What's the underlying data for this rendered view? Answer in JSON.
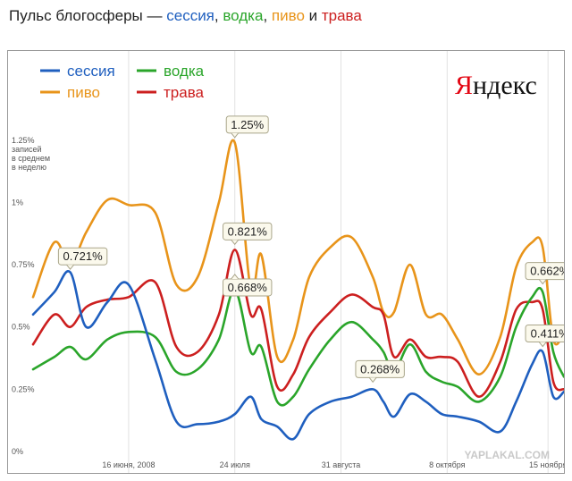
{
  "page": {
    "title_prefix": "Пульс блогосферы — ",
    "title_terms": [
      {
        "text": "сессия",
        "color": "#1f5fbf"
      },
      {
        "text": ", ",
        "color": "#222222"
      },
      {
        "text": "водка",
        "color": "#2aa52a"
      },
      {
        "text": ", ",
        "color": "#222222"
      },
      {
        "text": "пиво",
        "color": "#e8941a"
      },
      {
        "text": " и ",
        "color": "#222222"
      },
      {
        "text": "трава",
        "color": "#cc1f1f"
      }
    ]
  },
  "brand": {
    "text": "Яндекс",
    "accent_letter": "Я",
    "accent_color": "#e30613"
  },
  "watermark": "YAPLAKAL.COM",
  "chart_data": {
    "type": "line",
    "ylabel": "записей в среднем в неделю",
    "y_ticks": [
      "1.25%",
      "1%",
      "0.75%",
      "0.5%",
      "0.25%",
      "0%"
    ],
    "y_tick_values": [
      1.25,
      1.0,
      0.75,
      0.5,
      0.25,
      0
    ],
    "ylim": [
      0,
      1.35
    ],
    "xlim": [
      0,
      100
    ],
    "x_ticks": [
      {
        "label": "16 июня, 2008",
        "x": 18
      },
      {
        "label": "24 июля",
        "x": 38
      },
      {
        "label": "31 августа",
        "x": 58
      },
      {
        "label": "8 октября",
        "x": 78
      },
      {
        "label": "15 ноября",
        "x": 97
      }
    ],
    "grid": true,
    "legend": "top-left",
    "series": [
      {
        "name": "сессия",
        "color": "#1f5fbf",
        "x": [
          0,
          4,
          7,
          10,
          14,
          18,
          23,
          27,
          31,
          35,
          38,
          41,
          43,
          46,
          49,
          52,
          56,
          60,
          64,
          66,
          68,
          71,
          74,
          77,
          80,
          84,
          88,
          91,
          94,
          96,
          98,
          100
        ],
        "values": [
          0.55,
          0.64,
          0.72,
          0.5,
          0.6,
          0.67,
          0.37,
          0.12,
          0.11,
          0.12,
          0.15,
          0.22,
          0.13,
          0.1,
          0.05,
          0.15,
          0.2,
          0.22,
          0.25,
          0.2,
          0.14,
          0.23,
          0.2,
          0.15,
          0.14,
          0.12,
          0.08,
          0.2,
          0.35,
          0.4,
          0.22,
          0.24
        ]
      },
      {
        "name": "водка",
        "color": "#2aa52a",
        "x": [
          0,
          4,
          7,
          10,
          14,
          18,
          23,
          27,
          31,
          35,
          38,
          41,
          43,
          46,
          49,
          52,
          56,
          60,
          64,
          66,
          68,
          71,
          74,
          77,
          80,
          84,
          88,
          91,
          94,
          96,
          98,
          100
        ],
        "values": [
          0.33,
          0.38,
          0.42,
          0.37,
          0.45,
          0.48,
          0.46,
          0.32,
          0.33,
          0.45,
          0.65,
          0.4,
          0.42,
          0.2,
          0.22,
          0.33,
          0.45,
          0.52,
          0.45,
          0.4,
          0.32,
          0.43,
          0.32,
          0.28,
          0.26,
          0.2,
          0.3,
          0.5,
          0.62,
          0.64,
          0.4,
          0.3
        ]
      },
      {
        "name": "пиво",
        "color": "#e8941a",
        "x": [
          0,
          4,
          7,
          10,
          14,
          18,
          23,
          27,
          31,
          35,
          38,
          41,
          43,
          46,
          49,
          52,
          56,
          60,
          64,
          66,
          68,
          71,
          74,
          77,
          80,
          84,
          88,
          91,
          94,
          96,
          98,
          100
        ],
        "values": [
          0.62,
          0.84,
          0.75,
          0.88,
          1.01,
          0.99,
          0.96,
          0.67,
          0.7,
          1.0,
          1.24,
          0.65,
          0.79,
          0.38,
          0.45,
          0.7,
          0.82,
          0.86,
          0.7,
          0.56,
          0.56,
          0.75,
          0.55,
          0.55,
          0.45,
          0.31,
          0.46,
          0.74,
          0.84,
          0.82,
          0.45,
          0.48
        ]
      },
      {
        "name": "трава",
        "color": "#cc1f1f",
        "x": [
          0,
          4,
          7,
          10,
          14,
          18,
          23,
          27,
          31,
          35,
          38,
          41,
          43,
          46,
          49,
          52,
          56,
          60,
          64,
          66,
          68,
          71,
          74,
          77,
          80,
          84,
          88,
          91,
          94,
          96,
          98,
          100
        ],
        "values": [
          0.43,
          0.55,
          0.5,
          0.58,
          0.61,
          0.62,
          0.68,
          0.42,
          0.4,
          0.55,
          0.81,
          0.55,
          0.57,
          0.26,
          0.31,
          0.46,
          0.56,
          0.63,
          0.58,
          0.55,
          0.38,
          0.45,
          0.38,
          0.38,
          0.36,
          0.22,
          0.36,
          0.57,
          0.6,
          0.57,
          0.28,
          0.25
        ]
      }
    ],
    "annotations": [
      {
        "text": "0.721%",
        "series": "сессия",
        "x": 7,
        "value": 0.721
      },
      {
        "text": "1.25%",
        "series": "пиво",
        "x": 38,
        "value": 1.25
      },
      {
        "text": "0.821%",
        "series": "трава",
        "x": 38,
        "value": 0.821
      },
      {
        "text": "0.668%",
        "series": "водка",
        "x": 38,
        "value": 0.668
      },
      {
        "text": "0.268%",
        "series": "сессия",
        "x": 64,
        "value": 0.268
      },
      {
        "text": "0.662%",
        "series": "водка",
        "x": 96,
        "value": 0.662
      },
      {
        "text": "0.411%",
        "series": "сессия",
        "x": 96,
        "value": 0.411
      }
    ]
  }
}
